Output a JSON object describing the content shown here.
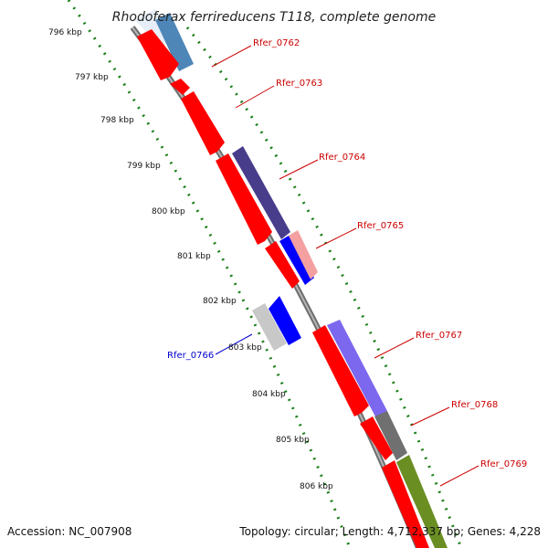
{
  "header": {
    "title": "Rhodoferax ferrireducens T118, complete genome"
  },
  "footer": {
    "accession": "Accession: NC_007908",
    "topology": "Topology: circular; Length: 4,712,337 bp; Genes: 4,228"
  },
  "ticks": [
    "796 kbp",
    "797 kbp",
    "798 kbp",
    "799 kbp",
    "800 kbp",
    "801 kbp",
    "802 kbp",
    "803 kbp",
    "804 kbp",
    "805 kbp",
    "806 kbp"
  ],
  "gene_labels": [
    {
      "text": "Rfer_0762",
      "color": "#cc0000"
    },
    {
      "text": "Rfer_0763",
      "color": "#cc0000"
    },
    {
      "text": "Rfer_0764",
      "color": "#cc0000"
    },
    {
      "text": "Rfer_0765",
      "color": "#cc0000"
    },
    {
      "text": "Rfer_0766",
      "color": "#0000cc"
    },
    {
      "text": "Rfer_0767",
      "color": "#cc0000"
    },
    {
      "text": "Rfer_0768",
      "color": "#cc0000"
    },
    {
      "text": "Rfer_0769",
      "color": "#cc0000"
    }
  ],
  "colors": {
    "backbone": "#8a8a8a",
    "tick_dots": "#1a7f1a",
    "leader_red": "#cc0000",
    "leader_blue": "#0000cc"
  }
}
